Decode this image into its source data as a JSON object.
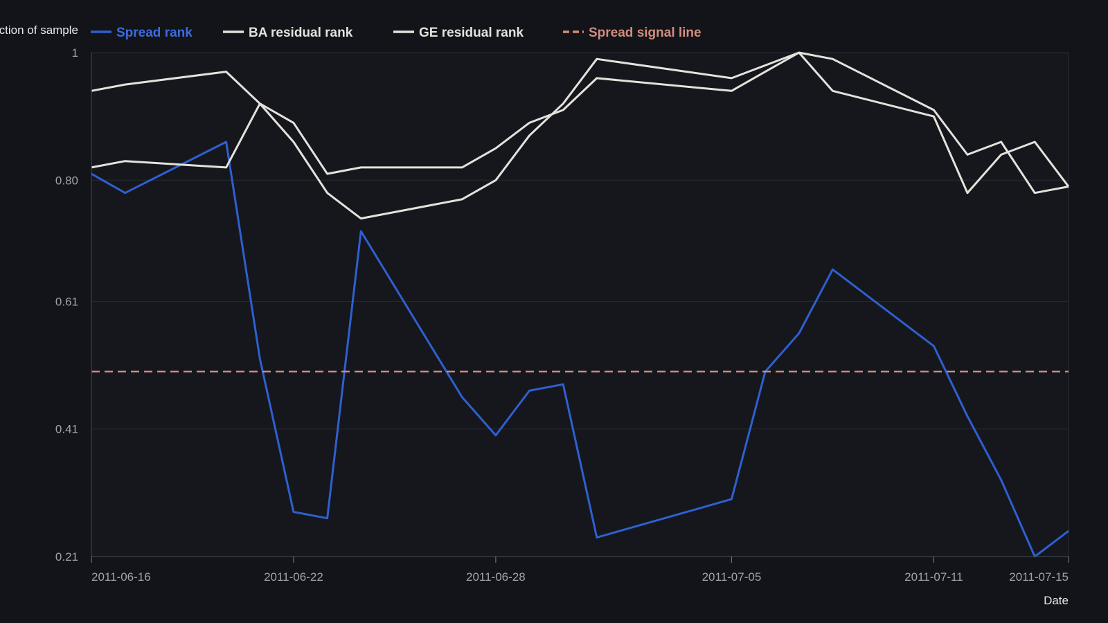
{
  "chart_data": {
    "type": "line",
    "title": "",
    "xlabel": "Date",
    "ylabel": "Fraction of sample",
    "x": [
      "2011-06-16",
      "2011-06-17",
      "2011-06-20",
      "2011-06-21",
      "2011-06-22",
      "2011-06-23",
      "2011-06-24",
      "2011-06-27",
      "2011-06-28",
      "2011-06-29",
      "2011-06-30",
      "2011-07-01",
      "2011-07-05",
      "2011-07-06",
      "2011-07-07",
      "2011-07-08",
      "2011-07-11",
      "2011-07-12",
      "2011-07-13",
      "2011-07-14",
      "2011-07-15"
    ],
    "x_ticks": [
      "2011-06-16",
      "2011-06-22",
      "2011-06-28",
      "2011-07-05",
      "2011-07-11",
      "2011-07-15"
    ],
    "y_ticks": [
      "0.21",
      "0.41",
      "0.61",
      "0.80",
      "1"
    ],
    "ylim": [
      0.21,
      1.0
    ],
    "grid": true,
    "legend_position": "top",
    "series": [
      {
        "name": "Spread rank",
        "color": "#2f5fd0",
        "style": "solid",
        "values": [
          0.81,
          0.78,
          0.86,
          0.52,
          0.28,
          0.27,
          0.72,
          0.46,
          0.4,
          0.47,
          0.48,
          0.24,
          0.3,
          0.5,
          0.56,
          0.66,
          0.54,
          0.43,
          0.33,
          0.21,
          0.25
        ]
      },
      {
        "name": "BA residual rank",
        "color": "#e4e2dc",
        "style": "solid",
        "values": [
          0.94,
          0.95,
          0.97,
          0.92,
          0.86,
          0.78,
          0.74,
          0.77,
          0.8,
          0.87,
          0.92,
          0.99,
          0.96,
          0.98,
          1.0,
          0.94,
          0.9,
          0.78,
          0.84,
          0.86,
          0.79
        ]
      },
      {
        "name": "GE residual rank",
        "color": "#e4e2dc",
        "style": "solid",
        "values": [
          0.82,
          0.83,
          0.82,
          0.92,
          0.89,
          0.81,
          0.82,
          0.82,
          0.85,
          0.89,
          0.91,
          0.96,
          0.94,
          0.97,
          1.0,
          0.99,
          0.91,
          0.84,
          0.86,
          0.78,
          0.79
        ]
      },
      {
        "name": "Spread signal line",
        "color": "#d58c7c",
        "style": "dashed",
        "values": [
          0.5,
          0.5,
          0.5,
          0.5,
          0.5,
          0.5,
          0.5,
          0.5,
          0.5,
          0.5,
          0.5,
          0.5,
          0.5,
          0.5,
          0.5,
          0.5,
          0.5,
          0.5,
          0.5,
          0.5,
          0.5
        ]
      }
    ]
  }
}
